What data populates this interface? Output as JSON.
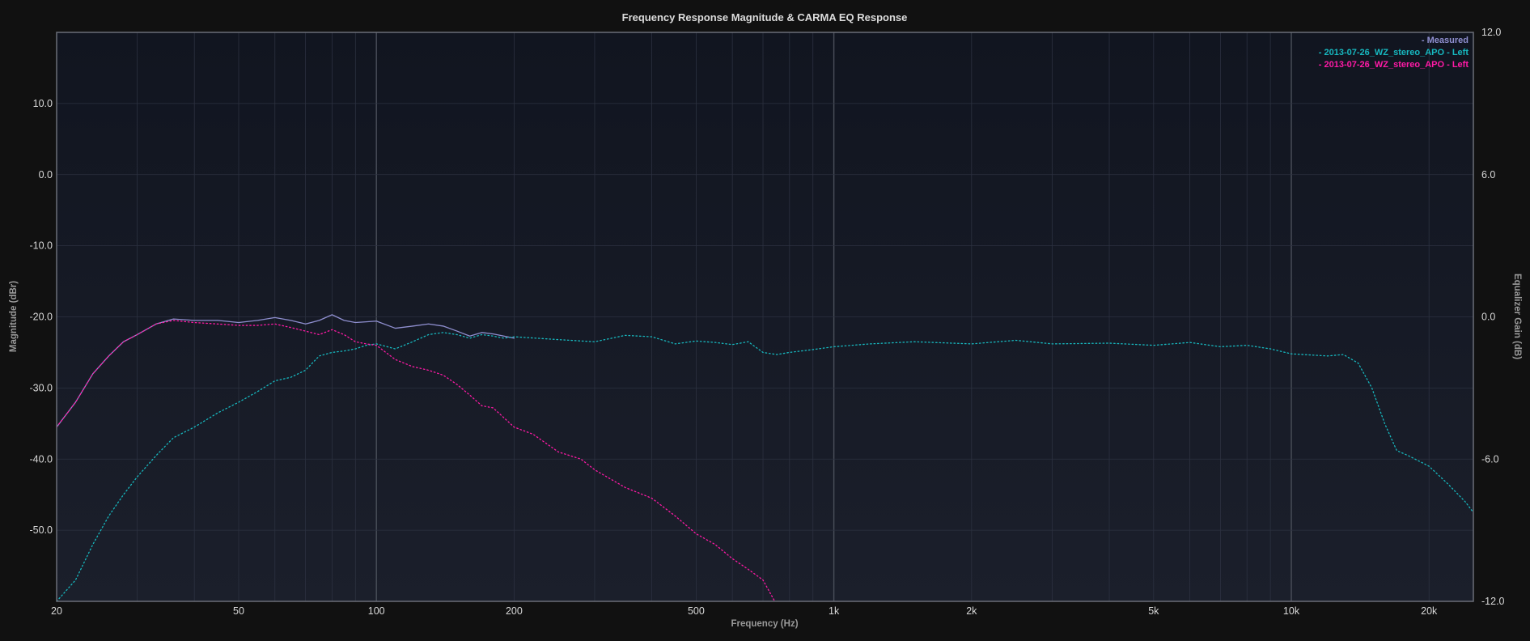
{
  "chart_data": {
    "type": "line",
    "title": "Frequency Response Magnitude & CARMA EQ Response",
    "xlabel": "Frequency (Hz)",
    "ylabel": "Magnitude (dBr)",
    "y2label": "Equalizer Gain (dB)",
    "xscale": "log",
    "xlim": [
      20,
      25000
    ],
    "ylim": [
      -60,
      20
    ],
    "y2lim": [
      -12,
      12
    ],
    "grid": true,
    "legend_position": "top-right",
    "colors": {
      "background": "#111111",
      "plot_top": "#111520",
      "plot_bottom": "#1b1f2b",
      "grid": "#2c3140",
      "grid_major": "#4a4f5a",
      "frame": "#6a6e78",
      "measured": "#8f8fd0",
      "carma": "#17b8bf",
      "eq": "#ff1aa6"
    },
    "x_ticks": [
      {
        "value": 20,
        "label": "20"
      },
      {
        "value": 50,
        "label": "50"
      },
      {
        "value": 100,
        "label": "100"
      },
      {
        "value": 200,
        "label": "200"
      },
      {
        "value": 500,
        "label": "500"
      },
      {
        "value": 1000,
        "label": "1k"
      },
      {
        "value": 2000,
        "label": "2k"
      },
      {
        "value": 5000,
        "label": "5k"
      },
      {
        "value": 10000,
        "label": "10k"
      },
      {
        "value": 20000,
        "label": "20k"
      }
    ],
    "y_ticks": [
      {
        "value": 10,
        "label": "10.0"
      },
      {
        "value": 0,
        "label": "0.0"
      },
      {
        "value": -10,
        "label": "-10.0"
      },
      {
        "value": -20,
        "label": "-20.0"
      },
      {
        "value": -30,
        "label": "-30.0"
      },
      {
        "value": -40,
        "label": "-40.0"
      },
      {
        "value": -50,
        "label": "-50.0"
      }
    ],
    "y2_ticks": [
      {
        "value": 12,
        "label": "12.0"
      },
      {
        "value": 6,
        "label": "6.0"
      },
      {
        "value": 0,
        "label": "0.0"
      },
      {
        "value": -6,
        "label": "-6.0"
      },
      {
        "value": -12,
        "label": "-12.0"
      }
    ],
    "series": [
      {
        "name": "- Measured",
        "color": "#8f8fd0",
        "style": "solid",
        "axis": "left",
        "x": [
          20,
          22,
          24,
          26,
          28,
          30,
          33,
          36,
          40,
          45,
          50,
          55,
          60,
          65,
          70,
          75,
          80,
          85,
          90,
          95,
          100,
          110,
          120,
          130,
          140,
          150,
          160,
          170,
          180,
          190,
          200
        ],
        "y": [
          -35.5,
          -32,
          -28,
          -25.5,
          -23.5,
          -22.5,
          -21,
          -20.3,
          -20.5,
          -20.5,
          -20.8,
          -20.5,
          -20.1,
          -20.5,
          -21,
          -20.5,
          -19.7,
          -20.5,
          -20.8,
          -20.7,
          -20.6,
          -21.6,
          -21.3,
          -21,
          -21.3,
          -22,
          -22.7,
          -22.2,
          -22.4,
          -22.7,
          -23
        ]
      },
      {
        "name": "- 2013-07-26_WZ_stereo_APO - Left",
        "color": "#17b8bf",
        "style": "dotted",
        "axis": "left",
        "x": [
          20,
          22,
          24,
          26,
          28,
          30,
          33,
          36,
          40,
          45,
          50,
          55,
          60,
          65,
          70,
          75,
          80,
          85,
          90,
          95,
          100,
          110,
          120,
          130,
          140,
          150,
          160,
          170,
          180,
          190,
          200,
          250,
          300,
          350,
          400,
          450,
          500,
          550,
          600,
          650,
          700,
          750,
          800,
          900,
          1000,
          1200,
          1500,
          2000,
          2500,
          3000,
          4000,
          5000,
          6000,
          7000,
          8000,
          9000,
          10000,
          12000,
          13000,
          14000,
          15000,
          16000,
          17000,
          18000,
          20000,
          22000,
          24000,
          25000
        ],
        "y": [
          -60,
          -57,
          -52,
          -48,
          -45,
          -42.5,
          -39.5,
          -37,
          -35.5,
          -33.5,
          -32,
          -30.5,
          -29,
          -28.5,
          -27.5,
          -25.5,
          -25,
          -24.8,
          -24.5,
          -24,
          -23.8,
          -24.5,
          -23.5,
          -22.5,
          -22.2,
          -22.5,
          -23,
          -22.5,
          -22.7,
          -23,
          -22.8,
          -23.2,
          -23.5,
          -22.6,
          -22.8,
          -23.8,
          -23.4,
          -23.6,
          -23.9,
          -23.5,
          -25,
          -25.3,
          -25,
          -24.6,
          -24.2,
          -23.8,
          -23.5,
          -23.8,
          -23.3,
          -23.8,
          -23.7,
          -24,
          -23.6,
          -24.2,
          -24,
          -24.5,
          -25.2,
          -25.5,
          -25.3,
          -26.5,
          -30,
          -35,
          -38.8,
          -39.5,
          -41,
          -43.5,
          -46,
          -47.5
        ]
      },
      {
        "name": "- 2013-07-26_WZ_stereo_APO - Left",
        "color": "#ff1aa6",
        "style": "dotted",
        "axis": "left",
        "x": [
          20,
          22,
          24,
          26,
          28,
          30,
          33,
          36,
          40,
          45,
          50,
          55,
          60,
          65,
          70,
          75,
          80,
          85,
          90,
          95,
          100,
          110,
          120,
          130,
          140,
          150,
          160,
          170,
          180,
          200,
          220,
          250,
          280,
          300,
          350,
          400,
          450,
          500,
          550,
          600,
          650,
          700,
          750
        ],
        "y": [
          -35.5,
          -32,
          -28,
          -25.5,
          -23.5,
          -22.5,
          -21,
          -20.5,
          -20.8,
          -21,
          -21.2,
          -21.2,
          -21,
          -21.5,
          -22,
          -22.5,
          -21.8,
          -22.5,
          -23.5,
          -23.8,
          -24,
          -26,
          -27,
          -27.5,
          -28.2,
          -29.5,
          -31,
          -32.5,
          -32.8,
          -35.5,
          -36.5,
          -39,
          -40,
          -41.5,
          -44,
          -45.5,
          -48,
          -50.5,
          -52,
          -54,
          -55.5,
          -57,
          -60.5
        ]
      }
    ]
  }
}
